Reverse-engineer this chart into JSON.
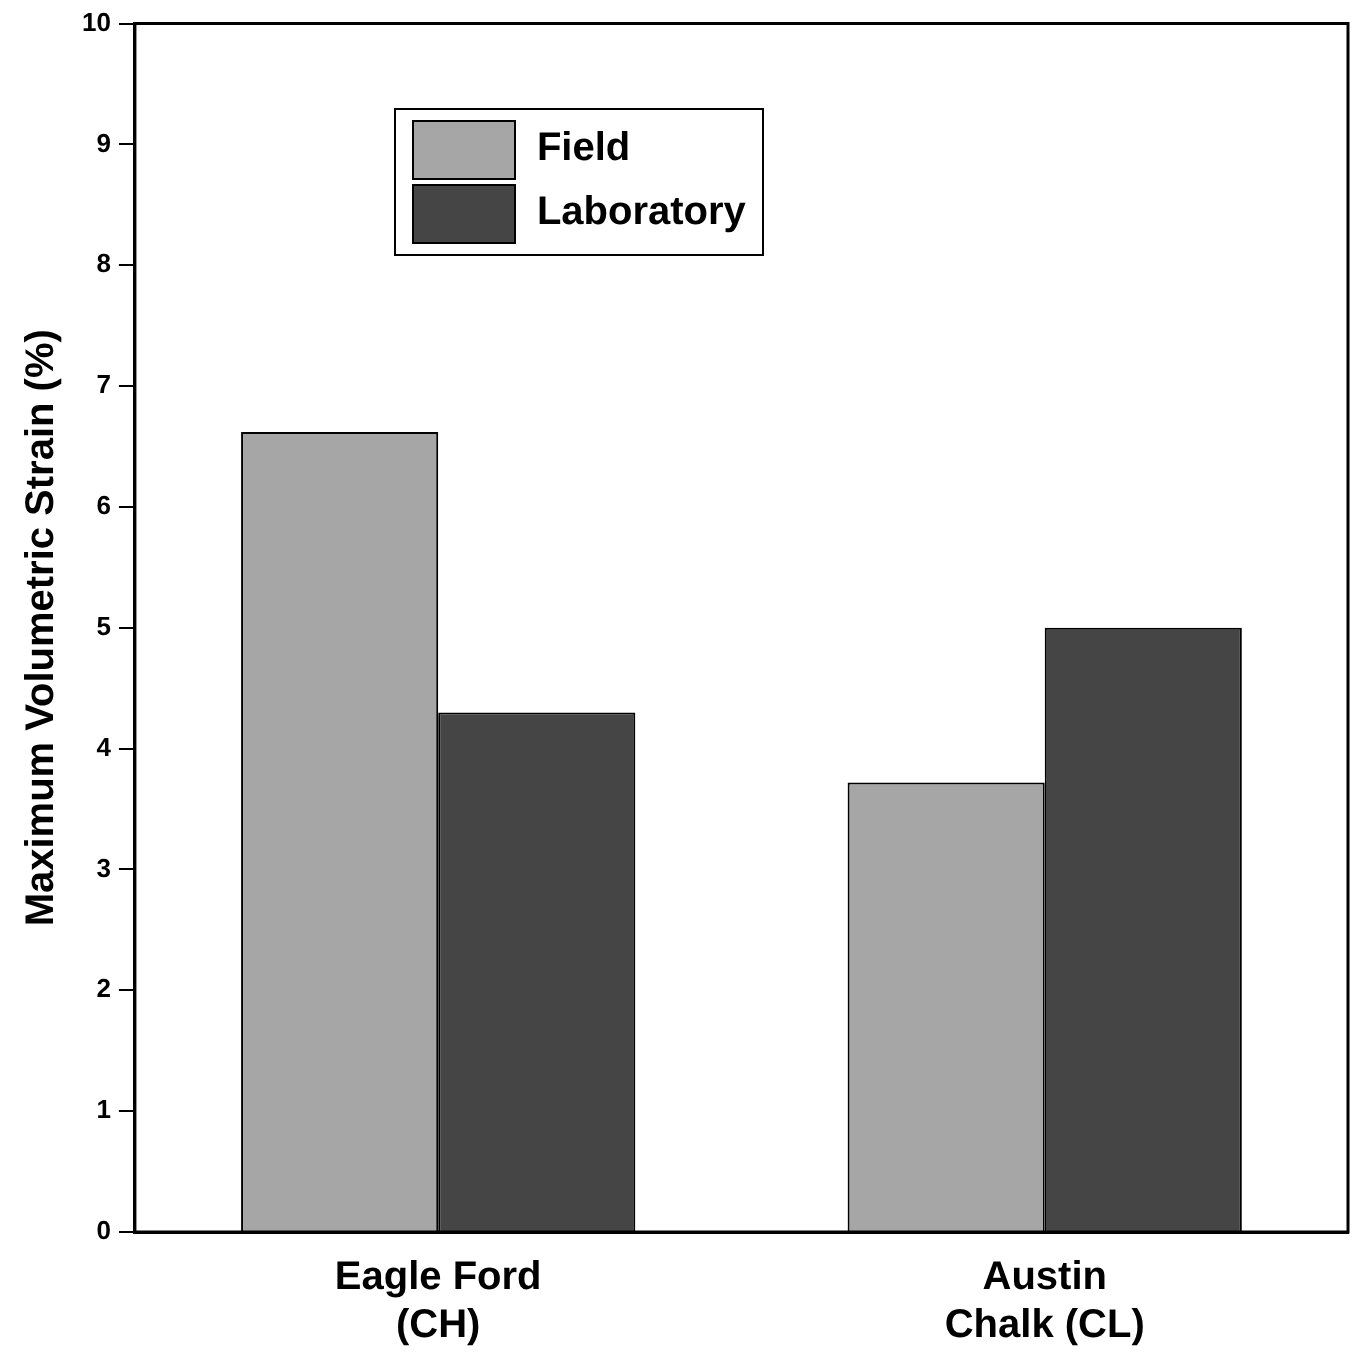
{
  "chart_data": {
    "type": "bar",
    "ylabel": "Maximum Volumetric Strain (%)",
    "categories": [
      "Eagle Ford\n(CH)",
      "Austin\nChalk (CL)"
    ],
    "series": [
      {
        "name": "Field",
        "color": "#a6a6a6",
        "values": [
          6.62,
          3.72
        ]
      },
      {
        "name": "Laboratory",
        "color": "#454545",
        "values": [
          4.3,
          5.0
        ]
      }
    ],
    "ylim": [
      0,
      10
    ],
    "yticks": [
      0,
      1,
      2,
      3,
      4,
      5,
      6,
      7,
      8,
      9,
      10
    ],
    "grid": false,
    "legend": "top left"
  }
}
